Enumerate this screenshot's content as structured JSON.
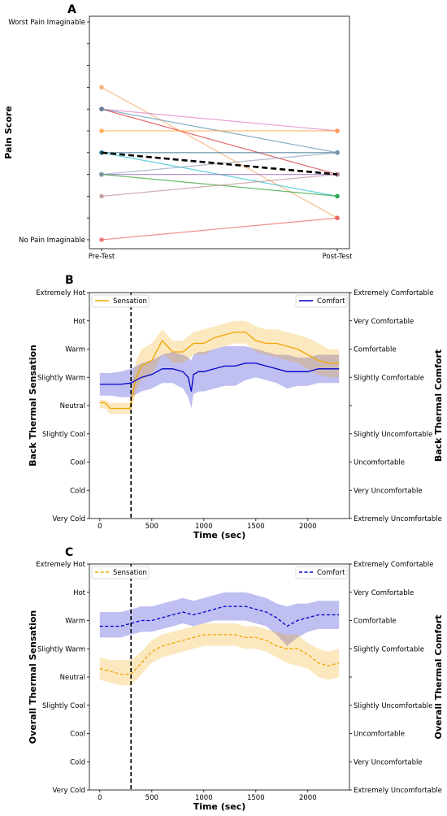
{
  "chart_data": [
    {
      "type": "line",
      "panel": "A",
      "ylabel": "Pain Score",
      "categories": [
        "Pre-Test",
        "Post-Test"
      ],
      "ylim": [
        0,
        10
      ],
      "yticks": [
        {
          "value": 0,
          "label": "No Pain Imaginable"
        },
        {
          "value": 1,
          "label": ""
        },
        {
          "value": 2,
          "label": ""
        },
        {
          "value": 3,
          "label": ""
        },
        {
          "value": 4,
          "label": ""
        },
        {
          "value": 5,
          "label": ""
        },
        {
          "value": 6,
          "label": ""
        },
        {
          "value": 7,
          "label": ""
        },
        {
          "value": 8,
          "label": ""
        },
        {
          "value": 9,
          "label": ""
        },
        {
          "value": 10,
          "label": "Worst Pain Imaginable"
        }
      ],
      "series": [
        {
          "color": "#f4a460",
          "values": [
            7,
            1
          ]
        },
        {
          "color": "#e377c2",
          "values": [
            6,
            5
          ]
        },
        {
          "color": "#d62728",
          "values": [
            6,
            3
          ]
        },
        {
          "color": "#4a8fb0",
          "values": [
            6,
            4
          ]
        },
        {
          "color": "#ff9f3f",
          "values": [
            5,
            5
          ]
        },
        {
          "color": "#17becf",
          "values": [
            4,
            2
          ]
        },
        {
          "color": "#1f6080",
          "values": [
            4,
            4
          ]
        },
        {
          "color": "#9467bd",
          "values": [
            3,
            3
          ]
        },
        {
          "color": "#2ca02c",
          "values": [
            3,
            2
          ]
        },
        {
          "color": "#8c9ab0",
          "values": [
            3,
            4
          ]
        },
        {
          "color": "#bc8f8f",
          "values": [
            2,
            3
          ]
        },
        {
          "color": "#e85a5a",
          "values": [
            0,
            1
          ]
        }
      ],
      "mean": {
        "color": "#000000",
        "values": [
          4,
          3
        ]
      }
    },
    {
      "type": "line",
      "panel": "B",
      "xlabel": "Time (sec)",
      "ylabel": "Back Thermal Sensation",
      "ylabel_right": "Back Thermal Comfort",
      "xlim": [
        -100,
        2400
      ],
      "xticks": [
        0,
        500,
        1000,
        1500,
        2000
      ],
      "ylim": [
        -4,
        4
      ],
      "yticks_left": [
        "Very Cold",
        "Cold",
        "Cool",
        "Slightly Cool",
        "Neutral",
        "Slightly Warm",
        "Warm",
        "Hot",
        "Extremely Hot"
      ],
      "yticks_right": [
        "Extremely Uncomfortable",
        "Very Uncomfortable",
        "Uncomfortable",
        "Slightly Uncomfortable",
        "",
        "Slightly Comfortable",
        "Comfortable",
        "Very Comfortable",
        "Extremely Comfortable"
      ],
      "vline_x": 300,
      "legend_left": "Sensation",
      "legend_right": "Comfort",
      "sensation": {
        "color": "#f0a500",
        "x": [
          0,
          50,
          100,
          200,
          290,
          310,
          350,
          400,
          450,
          500,
          600,
          650,
          700,
          750,
          800,
          900,
          1000,
          1100,
          1200,
          1300,
          1400,
          1500,
          1600,
          1700,
          1800,
          1900,
          2000,
          2100,
          2200,
          2300
        ],
        "mean": [
          0.1,
          0.1,
          -0.1,
          -0.1,
          -0.1,
          0.3,
          1.0,
          1.4,
          1.5,
          1.6,
          2.3,
          2.1,
          1.9,
          1.9,
          1.9,
          2.2,
          2.2,
          2.4,
          2.5,
          2.6,
          2.6,
          2.3,
          2.2,
          2.2,
          2.1,
          2.0,
          1.8,
          1.6,
          1.5,
          1.5
        ],
        "upper": [
          0.2,
          0.2,
          0.1,
          0.1,
          0.1,
          0.8,
          1.6,
          2.0,
          2.1,
          2.2,
          2.7,
          2.5,
          2.3,
          2.3,
          2.3,
          2.6,
          2.7,
          2.8,
          2.9,
          3.0,
          3.0,
          2.8,
          2.7,
          2.7,
          2.6,
          2.5,
          2.4,
          2.2,
          2.0,
          2.0
        ],
        "lower": [
          -0.1,
          -0.1,
          -0.3,
          -0.3,
          -0.3,
          -0.1,
          0.5,
          0.9,
          1.0,
          1.1,
          1.8,
          1.7,
          1.5,
          1.5,
          1.5,
          1.8,
          1.8,
          2.0,
          2.1,
          2.2,
          2.2,
          1.9,
          1.8,
          1.7,
          1.6,
          1.5,
          1.3,
          1.1,
          1.0,
          1.0
        ]
      },
      "comfort": {
        "color": "#0000cc",
        "x": [
          0,
          100,
          200,
          300,
          350,
          400,
          500,
          600,
          700,
          800,
          850,
          880,
          900,
          950,
          1000,
          1100,
          1200,
          1300,
          1400,
          1500,
          1600,
          1700,
          1800,
          1900,
          2000,
          2100,
          2200,
          2300
        ],
        "mean": [
          0.75,
          0.75,
          0.75,
          0.8,
          0.9,
          1.0,
          1.1,
          1.3,
          1.3,
          1.2,
          1.0,
          0.5,
          1.1,
          1.2,
          1.2,
          1.3,
          1.4,
          1.4,
          1.5,
          1.5,
          1.4,
          1.3,
          1.2,
          1.2,
          1.2,
          1.3,
          1.3,
          1.3
        ],
        "upper": [
          1.15,
          1.15,
          1.2,
          1.3,
          1.4,
          1.5,
          1.6,
          1.8,
          1.9,
          1.8,
          1.7,
          1.6,
          1.8,
          1.9,
          1.9,
          2.0,
          2.1,
          2.1,
          2.1,
          2.0,
          1.9,
          1.8,
          1.8,
          1.7,
          1.7,
          1.8,
          1.8,
          1.8
        ],
        "lower": [
          0.35,
          0.35,
          0.3,
          0.3,
          0.4,
          0.5,
          0.6,
          0.8,
          0.8,
          0.6,
          0.3,
          -0.1,
          0.4,
          0.5,
          0.5,
          0.6,
          0.7,
          0.7,
          0.9,
          1.0,
          0.9,
          0.8,
          0.6,
          0.7,
          0.7,
          0.8,
          0.8,
          0.8
        ]
      }
    },
    {
      "type": "line",
      "panel": "C",
      "xlabel": "Time (sec)",
      "ylabel": "Overall Thermal Sensation",
      "ylabel_right": "Overall Thermal Comfort",
      "xlim": [
        -100,
        2400
      ],
      "xticks": [
        0,
        500,
        1000,
        1500,
        2000
      ],
      "ylim": [
        -4,
        4
      ],
      "yticks_left": [
        "Very Cold",
        "Cold",
        "Cool",
        "Slightly Cool",
        "Neutral",
        "Slightly Warm",
        "Warm",
        "Hot",
        "Extremely Hot"
      ],
      "yticks_right": [
        "Extremely Uncomfortable",
        "Very Uncomfortable",
        "Uncomfortable",
        "Slightly Uncomfortable",
        "",
        "Slightly Comfortable",
        "Comfortable",
        "Very Comfortable",
        "Extremely Comfortable"
      ],
      "vline_x": 300,
      "legend_left": "Sensation",
      "legend_right": "Comfort",
      "sensation": {
        "color": "#f0a500",
        "x": [
          0,
          100,
          200,
          300,
          400,
          500,
          600,
          700,
          800,
          900,
          1000,
          1100,
          1200,
          1300,
          1400,
          1500,
          1600,
          1700,
          1800,
          1900,
          2000,
          2100,
          2200,
          2300
        ],
        "mean": [
          0.3,
          0.2,
          0.1,
          0.1,
          0.5,
          0.9,
          1.1,
          1.2,
          1.3,
          1.4,
          1.5,
          1.5,
          1.5,
          1.5,
          1.4,
          1.4,
          1.3,
          1.1,
          1.0,
          1.0,
          0.8,
          0.5,
          0.4,
          0.5
        ],
        "upper": [
          0.7,
          0.6,
          0.6,
          0.6,
          0.9,
          1.3,
          1.5,
          1.6,
          1.7,
          1.8,
          1.9,
          1.9,
          1.9,
          1.9,
          1.8,
          1.8,
          1.7,
          1.6,
          1.5,
          1.5,
          1.2,
          1.0,
          0.9,
          1.0
        ],
        "lower": [
          -0.1,
          -0.2,
          -0.3,
          -0.3,
          0.1,
          0.5,
          0.7,
          0.8,
          0.9,
          1.0,
          1.1,
          1.1,
          1.1,
          1.1,
          1.0,
          1.0,
          0.9,
          0.7,
          0.5,
          0.4,
          0.3,
          0.0,
          -0.1,
          0.0
        ]
      },
      "comfort": {
        "color": "#0000cc",
        "x": [
          0,
          100,
          200,
          300,
          400,
          500,
          600,
          700,
          800,
          900,
          1000,
          1100,
          1200,
          1300,
          1400,
          1500,
          1600,
          1700,
          1800,
          1900,
          2000,
          2100,
          2200,
          2300
        ],
        "mean": [
          1.8,
          1.8,
          1.8,
          1.9,
          2.0,
          2.0,
          2.1,
          2.2,
          2.3,
          2.2,
          2.3,
          2.4,
          2.5,
          2.5,
          2.5,
          2.4,
          2.3,
          2.1,
          1.8,
          2.0,
          2.1,
          2.2,
          2.2,
          2.2
        ],
        "upper": [
          2.3,
          2.3,
          2.3,
          2.4,
          2.5,
          2.5,
          2.6,
          2.7,
          2.8,
          2.7,
          2.8,
          2.9,
          3.0,
          3.0,
          3.0,
          2.9,
          2.8,
          2.6,
          2.5,
          2.6,
          2.6,
          2.7,
          2.7,
          2.7
        ],
        "lower": [
          1.4,
          1.4,
          1.4,
          1.5,
          1.6,
          1.6,
          1.7,
          1.8,
          1.9,
          1.8,
          1.9,
          2.0,
          2.0,
          2.0,
          2.0,
          1.9,
          1.8,
          1.5,
          1.1,
          1.4,
          1.6,
          1.7,
          1.7,
          1.7
        ]
      }
    }
  ]
}
